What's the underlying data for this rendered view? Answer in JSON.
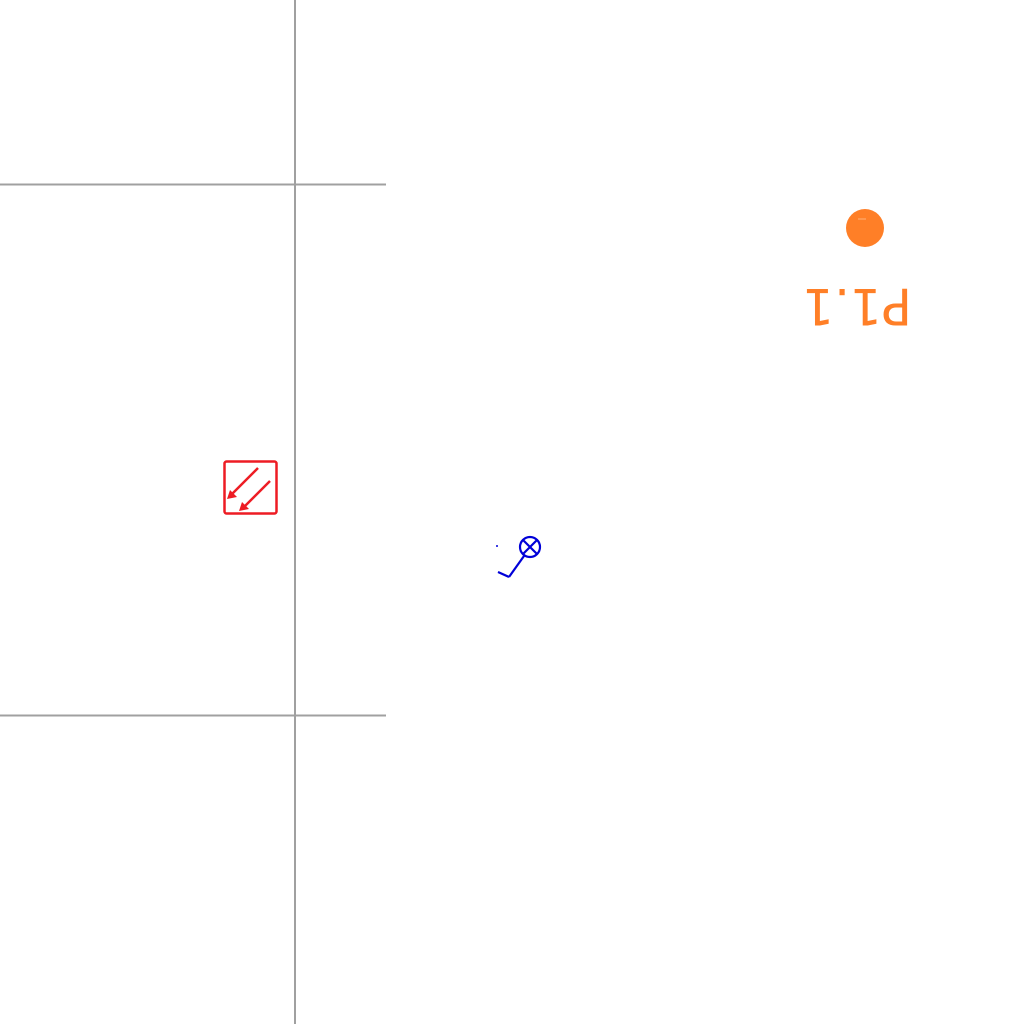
{
  "colors": {
    "background": "#ffffff",
    "grid_line": "#a0a0a0",
    "pad": "#ff7f27",
    "led_symbol": "#ed1c24",
    "marker_symbol": "#0000d8"
  },
  "pad": {
    "label": "P1.1",
    "icon": "circle-pad-icon"
  },
  "symbols": {
    "led": "led-arrows-icon",
    "marker": "crossed-circle-marker-icon"
  }
}
